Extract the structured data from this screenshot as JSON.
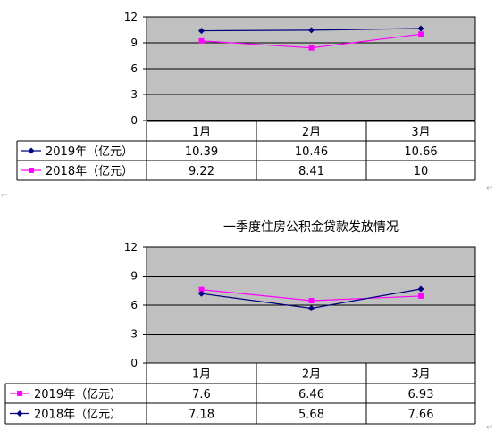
{
  "chart_data": [
    {
      "type": "line",
      "title": "",
      "categories": [
        "1月",
        "2月",
        "3月"
      ],
      "ylim": [
        0,
        12
      ],
      "yticks": [
        0,
        3,
        6,
        9,
        12
      ],
      "grid": true,
      "legend": "data-table",
      "series": [
        {
          "name": "2019年（亿元）",
          "values": [
            10.39,
            10.46,
            10.66
          ],
          "labels": [
            "10.39",
            "10.46",
            "10.66"
          ],
          "color": "#000080",
          "marker": "diamond"
        },
        {
          "name": "2018年（亿元）",
          "values": [
            9.22,
            8.41,
            10
          ],
          "labels": [
            "9.22",
            "8.41",
            "10"
          ],
          "color": "#ff00ff",
          "marker": "square"
        }
      ]
    },
    {
      "type": "line",
      "title": "一季度住房公积金贷款发放情况",
      "categories": [
        "1月",
        "2月",
        "3月"
      ],
      "ylim": [
        0,
        12
      ],
      "yticks": [
        0,
        3,
        6,
        9,
        12
      ],
      "grid": true,
      "legend": "data-table",
      "series": [
        {
          "name": "2019年（亿元）",
          "values": [
            7.6,
            6.46,
            6.93
          ],
          "labels": [
            "7.6",
            "6.46",
            "6.93"
          ],
          "color": "#ff00ff",
          "marker": "square"
        },
        {
          "name": "2018年（亿元）",
          "values": [
            7.18,
            5.68,
            7.66
          ],
          "labels": [
            "7.18",
            "5.68",
            "7.66"
          ],
          "color": "#000080",
          "marker": "diamond"
        }
      ]
    }
  ]
}
